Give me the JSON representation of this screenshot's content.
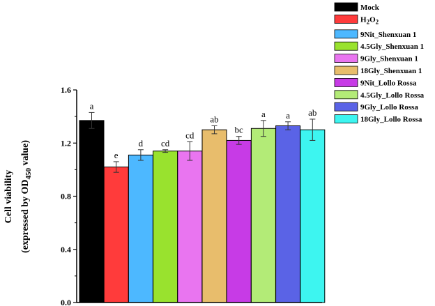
{
  "chart_data": {
    "type": "bar",
    "title": "",
    "xlabel": "",
    "ylabel": {
      "line1": "Cell viability",
      "line2_prefix": "(expressed by OD",
      "line2_sub": "450",
      "line2_suffix": " value)"
    },
    "ylim": [
      0.0,
      1.6
    ],
    "yticks": [
      "0.0",
      "0.4",
      "0.8",
      "1.2",
      "1.6"
    ],
    "yticks_values": [
      0.0,
      0.4,
      0.8,
      1.2,
      1.6
    ],
    "grid": false,
    "legend_position": "top-right",
    "series": [
      {
        "name": "Mock",
        "value": 1.37,
        "error": 0.06,
        "letter": "a",
        "color": "#000000"
      },
      {
        "name": "H2O2",
        "value": 1.02,
        "error": 0.04,
        "letter": "e",
        "color": "#ff3b3b"
      },
      {
        "name": "9Nit_Shenxuan 1",
        "value": 1.11,
        "error": 0.04,
        "letter": "d",
        "color": "#4db8ff"
      },
      {
        "name": "4.5Gly_Shenxuan 1",
        "value": 1.14,
        "error": 0.01,
        "letter": "cd",
        "color": "#99e22e"
      },
      {
        "name": "9Gly_Shenxuan 1",
        "value": 1.14,
        "error": 0.07,
        "letter": "cd",
        "color": "#e975f0"
      },
      {
        "name": "18Gly_Shenxuan 1",
        "value": 1.3,
        "error": 0.03,
        "letter": "ab",
        "color": "#e8bd6c"
      },
      {
        "name": "9Nit_Lollo Rossa",
        "value": 1.22,
        "error": 0.03,
        "letter": "bc",
        "color": "#c73be6"
      },
      {
        "name": "4.5Gly_Lollo Rossa",
        "value": 1.31,
        "error": 0.06,
        "letter": "a",
        "color": "#b3eb77"
      },
      {
        "name": "9Gly_Lollo Rossa",
        "value": 1.33,
        "error": 0.03,
        "letter": "a",
        "color": "#5a63e6"
      },
      {
        "name": "18Gly_Lollo Rossa",
        "value": 1.3,
        "error": 0.08,
        "letter": "ab",
        "color": "#3df5f0"
      }
    ]
  }
}
